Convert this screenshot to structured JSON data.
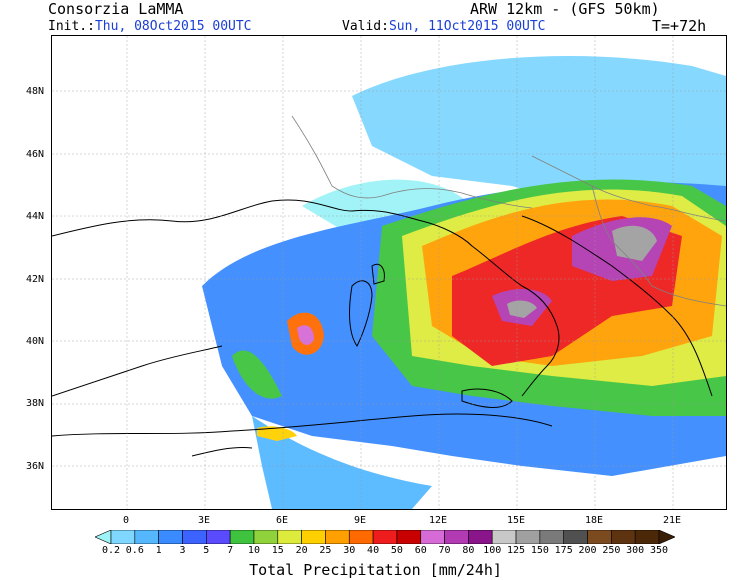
{
  "header": {
    "org": "Consorzia LaMMA",
    "model": "ARW 12km - (GFS 50km)",
    "init_label": "Init.:",
    "init_value": "Thu, 08Oct2015 00UTC",
    "valid_label": "Valid:",
    "valid_value": "Sun, 11Oct2015 00UTC",
    "lead": "T=+72h"
  },
  "map": {
    "lat_ticks": [
      "48N",
      "46N",
      "44N",
      "42N",
      "40N",
      "38N",
      "36N"
    ],
    "lon_ticks": [
      "0",
      "3E",
      "6E",
      "9E",
      "12E",
      "15E",
      "18E",
      "21E"
    ],
    "land_color": "#ffffff",
    "coast_color": "#000000",
    "border_color": "#808080"
  },
  "colorbar": {
    "title": "Total Precipitation [mm/24h]",
    "levels": [
      "0.2",
      "0.6",
      "1",
      "3",
      "5",
      "7",
      "10",
      "15",
      "20",
      "25",
      "30",
      "40",
      "50",
      "60",
      "70",
      "80",
      "100",
      "125",
      "150",
      "175",
      "200",
      "250",
      "300",
      "350"
    ],
    "colors": [
      "#9ef3f7",
      "#7fd6ff",
      "#55b8ff",
      "#3a8bff",
      "#3c62ff",
      "#5a4bff",
      "#3fc33f",
      "#8fd23c",
      "#ddec3c",
      "#ffd000",
      "#ffa000",
      "#ff6a00",
      "#ee1c1c",
      "#c80000",
      "#d66ad6",
      "#b23ab2",
      "#8a148a",
      "#c8c8c8",
      "#a0a0a0",
      "#7a7a7a",
      "#505050",
      "#7b4a1e",
      "#5e3410",
      "#4a2808",
      "#3a1e05"
    ]
  }
}
